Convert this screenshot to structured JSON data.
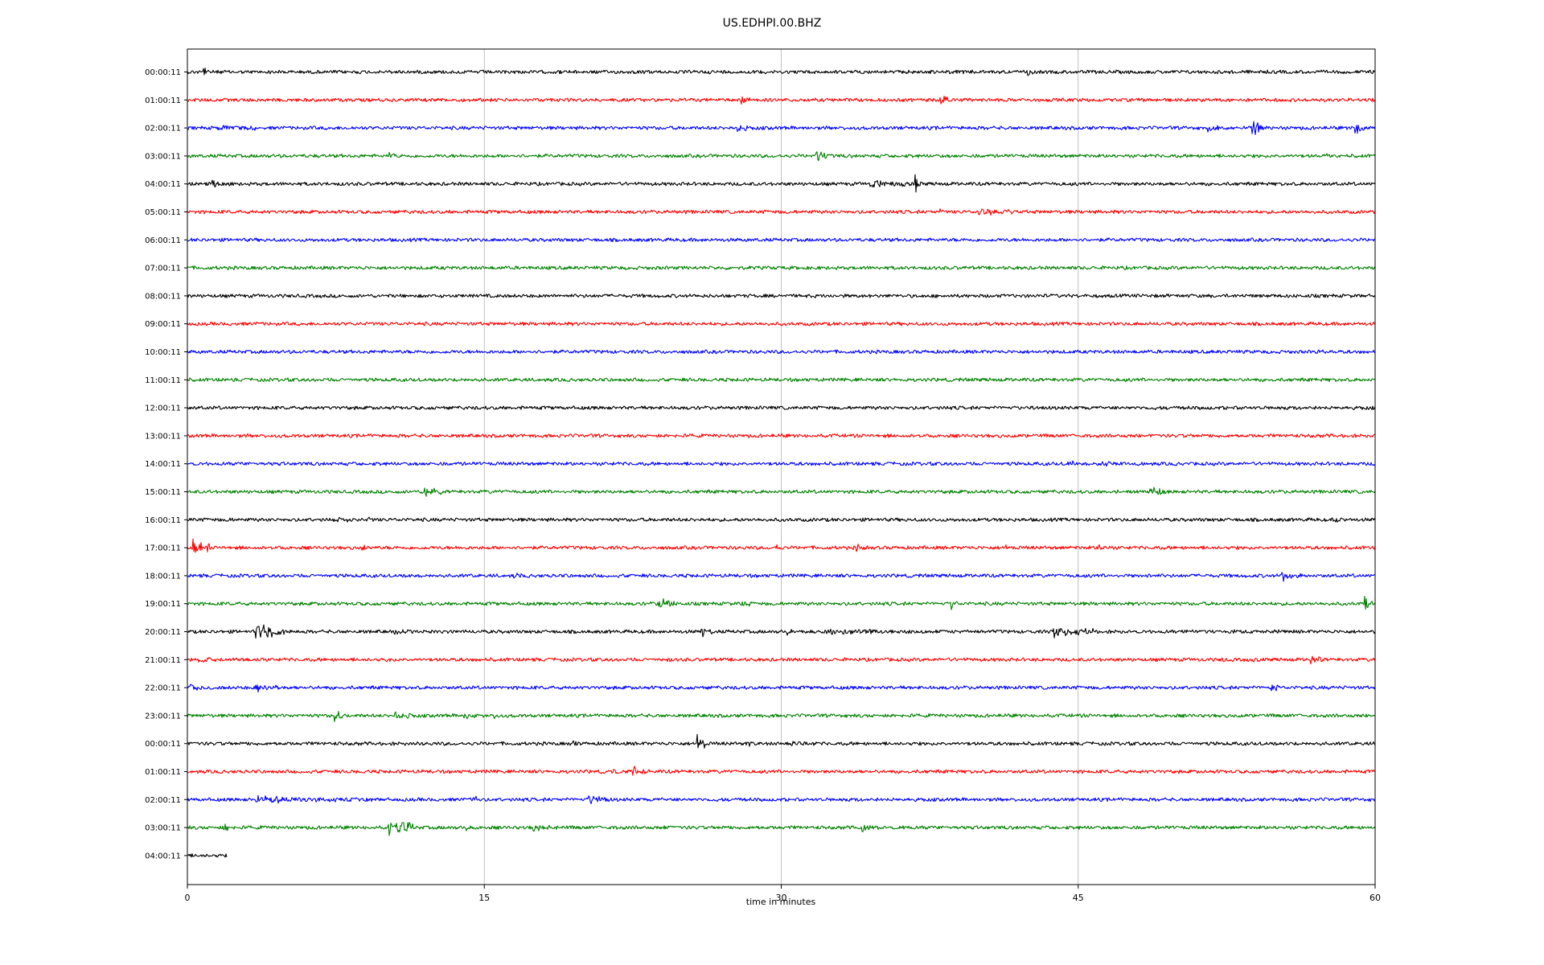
{
  "chart_data": {
    "type": "line",
    "title": "US.EDHPI.00.BHZ",
    "xlabel": "time in minutes",
    "ylabel": "",
    "xlim": [
      0,
      60
    ],
    "xticks": [
      "0",
      "15",
      "30",
      "45",
      "60"
    ],
    "grid": "vertical lines at 15-minute ticks",
    "color_cycle": [
      "#000000",
      "#ff0000",
      "#0000ff",
      "#008000"
    ],
    "rows": [
      {
        "label": "00:00:11",
        "end_minute": 60,
        "events": [
          {
            "t": 0.8,
            "amp": 0.75,
            "dur": 0.3
          },
          {
            "t": 42.5,
            "amp": 0.55,
            "dur": 0.2
          }
        ]
      },
      {
        "label": "01:00:11",
        "end_minute": 60,
        "events": [
          {
            "t": 28.0,
            "amp": 0.55,
            "dur": 0.8
          },
          {
            "t": 38.0,
            "amp": 0.55,
            "dur": 0.6
          }
        ]
      },
      {
        "label": "02:00:11",
        "end_minute": 60,
        "events": [
          {
            "t": 1.5,
            "amp": 0.35,
            "dur": 2.5
          },
          {
            "t": 3.3,
            "amp": 0.4,
            "dur": 0.4
          },
          {
            "t": 27.8,
            "amp": 0.55,
            "dur": 0.5
          },
          {
            "t": 51.5,
            "amp": 0.35,
            "dur": 2.0
          },
          {
            "t": 53.8,
            "amp": 0.75,
            "dur": 0.6
          },
          {
            "t": 59.0,
            "amp": 0.85,
            "dur": 0.5
          }
        ]
      },
      {
        "label": "03:00:11",
        "end_minute": 60,
        "events": [
          {
            "t": 10.2,
            "amp": 0.45,
            "dur": 0.6
          },
          {
            "t": 31.8,
            "amp": 0.6,
            "dur": 0.8
          },
          {
            "t": 57.5,
            "amp": 0.2,
            "dur": 1.0
          }
        ]
      },
      {
        "label": "04:00:11",
        "end_minute": 60,
        "events": [
          {
            "t": 1.3,
            "amp": 0.55,
            "dur": 0.3
          },
          {
            "t": 2.0,
            "amp": 0.45,
            "dur": 0.2
          },
          {
            "t": 34.5,
            "amp": 0.45,
            "dur": 2.0
          },
          {
            "t": 36.8,
            "amp": 0.7,
            "dur": 0.3
          }
        ]
      },
      {
        "label": "05:00:11",
        "end_minute": 60,
        "events": [
          {
            "t": 38.0,
            "amp": 0.3,
            "dur": 0.5
          },
          {
            "t": 40.0,
            "amp": 0.4,
            "dur": 2.0
          },
          {
            "t": 41.5,
            "amp": 0.3,
            "dur": 0.6
          }
        ]
      },
      {
        "label": "06:00:11",
        "end_minute": 60,
        "events": []
      },
      {
        "label": "07:00:11",
        "end_minute": 60,
        "events": []
      },
      {
        "label": "08:00:11",
        "end_minute": 60,
        "events": []
      },
      {
        "label": "09:00:11",
        "end_minute": 60,
        "events": []
      },
      {
        "label": "10:00:11",
        "end_minute": 60,
        "events": [
          {
            "t": 57.0,
            "amp": 0.15,
            "dur": 0.8
          }
        ]
      },
      {
        "label": "11:00:11",
        "end_minute": 60,
        "events": [
          {
            "t": 2.3,
            "amp": 0.15,
            "dur": 0.2
          }
        ]
      },
      {
        "label": "12:00:11",
        "end_minute": 60,
        "events": []
      },
      {
        "label": "13:00:11",
        "end_minute": 60,
        "events": []
      },
      {
        "label": "14:00:11",
        "end_minute": 60,
        "events": [
          {
            "t": 44.5,
            "amp": 0.35,
            "dur": 1.0
          },
          {
            "t": 46.0,
            "amp": 0.3,
            "dur": 2.5
          },
          {
            "t": 50.5,
            "amp": 0.15,
            "dur": 0.3
          }
        ]
      },
      {
        "label": "15:00:11",
        "end_minute": 60,
        "events": [
          {
            "t": 12.0,
            "amp": 0.65,
            "dur": 0.8
          },
          {
            "t": 47.0,
            "amp": 0.2,
            "dur": 1.0
          },
          {
            "t": 48.5,
            "amp": 0.6,
            "dur": 1.0
          }
        ]
      },
      {
        "label": "16:00:11",
        "end_minute": 60,
        "events": [
          {
            "t": 2.0,
            "amp": 0.25,
            "dur": 0.3
          },
          {
            "t": 7.5,
            "amp": 0.35,
            "dur": 1.2
          },
          {
            "t": 9.2,
            "amp": 0.45,
            "dur": 0.3
          },
          {
            "t": 58.0,
            "amp": 0.3,
            "dur": 0.6
          }
        ]
      },
      {
        "label": "17:00:11",
        "end_minute": 60,
        "events": [
          {
            "t": 0.3,
            "amp": 0.85,
            "dur": 0.8
          },
          {
            "t": 8.8,
            "amp": 0.45,
            "dur": 0.4
          },
          {
            "t": 29.8,
            "amp": 0.35,
            "dur": 0.2
          },
          {
            "t": 33.8,
            "amp": 0.5,
            "dur": 0.6
          },
          {
            "t": 41.3,
            "amp": 0.35,
            "dur": 0.4
          },
          {
            "t": 46.0,
            "amp": 0.45,
            "dur": 0.6
          }
        ]
      },
      {
        "label": "18:00:11",
        "end_minute": 60,
        "events": [
          {
            "t": 11.3,
            "amp": 0.25,
            "dur": 0.5
          },
          {
            "t": 16.5,
            "amp": 0.45,
            "dur": 0.4
          },
          {
            "t": 48.5,
            "amp": 0.2,
            "dur": 0.4
          },
          {
            "t": 55.3,
            "amp": 0.55,
            "dur": 1.0
          }
        ]
      },
      {
        "label": "19:00:11",
        "end_minute": 60,
        "events": [
          {
            "t": 23.8,
            "amp": 0.7,
            "dur": 0.8
          },
          {
            "t": 28.0,
            "amp": 0.55,
            "dur": 0.4
          },
          {
            "t": 38.6,
            "amp": 0.6,
            "dur": 0.3
          },
          {
            "t": 59.5,
            "amp": 0.55,
            "dur": 0.5
          }
        ]
      },
      {
        "label": "20:00:11",
        "end_minute": 60,
        "events": [
          {
            "t": 3.5,
            "amp": 0.9,
            "dur": 1.5
          },
          {
            "t": 10.5,
            "amp": 0.2,
            "dur": 3.5
          },
          {
            "t": 26.0,
            "amp": 0.75,
            "dur": 0.5
          },
          {
            "t": 30.2,
            "amp": 0.4,
            "dur": 1.2
          },
          {
            "t": 32.0,
            "amp": 0.35,
            "dur": 8.0
          },
          {
            "t": 43.8,
            "amp": 0.6,
            "dur": 2.0
          },
          {
            "t": 50.0,
            "amp": 0.2,
            "dur": 6.0
          }
        ]
      },
      {
        "label": "21:00:11",
        "end_minute": 60,
        "events": [
          {
            "t": 0.5,
            "amp": 0.3,
            "dur": 2.5
          },
          {
            "t": 3.6,
            "amp": 0.3,
            "dur": 0.3
          },
          {
            "t": 10.0,
            "amp": 0.25,
            "dur": 0.5
          },
          {
            "t": 24.0,
            "amp": 0.25,
            "dur": 0.4
          },
          {
            "t": 52.3,
            "amp": 0.35,
            "dur": 0.3
          },
          {
            "t": 53.8,
            "amp": 0.3,
            "dur": 0.4
          },
          {
            "t": 56.8,
            "amp": 0.5,
            "dur": 0.6
          }
        ]
      },
      {
        "label": "22:00:11",
        "end_minute": 60,
        "events": [
          {
            "t": 0.2,
            "amp": 0.4,
            "dur": 1.3
          },
          {
            "t": 3.5,
            "amp": 0.6,
            "dur": 1.2
          },
          {
            "t": 54.8,
            "amp": 0.8,
            "dur": 0.3
          }
        ]
      },
      {
        "label": "23:00:11",
        "end_minute": 60,
        "events": [
          {
            "t": 7.4,
            "amp": 0.7,
            "dur": 0.6
          },
          {
            "t": 10.5,
            "amp": 0.55,
            "dur": 0.8
          },
          {
            "t": 14.0,
            "amp": 0.35,
            "dur": 1.0
          },
          {
            "t": 15.5,
            "amp": 0.3,
            "dur": 0.3
          }
        ]
      },
      {
        "label": "00:00:11",
        "end_minute": 60,
        "events": [
          {
            "t": 11.3,
            "amp": 0.3,
            "dur": 0.3
          },
          {
            "t": 19.5,
            "amp": 0.35,
            "dur": 0.5
          },
          {
            "t": 25.8,
            "amp": 0.9,
            "dur": 0.4
          },
          {
            "t": 28.3,
            "amp": 0.45,
            "dur": 0.3
          },
          {
            "t": 30.5,
            "amp": 0.45,
            "dur": 0.6
          },
          {
            "t": 31.5,
            "amp": 0.35,
            "dur": 0.4
          }
        ]
      },
      {
        "label": "01:00:11",
        "end_minute": 60,
        "events": [
          {
            "t": 21.5,
            "amp": 0.3,
            "dur": 0.6
          },
          {
            "t": 22.5,
            "amp": 0.5,
            "dur": 1.0
          }
        ]
      },
      {
        "label": "02:00:11",
        "end_minute": 60,
        "events": [
          {
            "t": 3.5,
            "amp": 0.4,
            "dur": 6.0
          },
          {
            "t": 14.5,
            "amp": 0.5,
            "dur": 0.3
          },
          {
            "t": 20.3,
            "amp": 0.55,
            "dur": 1.0
          }
        ]
      },
      {
        "label": "03:00:11",
        "end_minute": 60,
        "events": [
          {
            "t": 1.8,
            "amp": 0.8,
            "dur": 0.3
          },
          {
            "t": 10.2,
            "amp": 1.0,
            "dur": 1.2
          },
          {
            "t": 14.0,
            "amp": 0.45,
            "dur": 0.4
          },
          {
            "t": 17.5,
            "amp": 0.35,
            "dur": 1.5
          },
          {
            "t": 24.0,
            "amp": 0.25,
            "dur": 0.5
          },
          {
            "t": 34.0,
            "amp": 0.45,
            "dur": 1.0
          },
          {
            "t": 36.0,
            "amp": 0.3,
            "dur": 0.5
          }
        ]
      },
      {
        "label": "04:00:11",
        "end_minute": 2.0,
        "events": []
      }
    ]
  }
}
